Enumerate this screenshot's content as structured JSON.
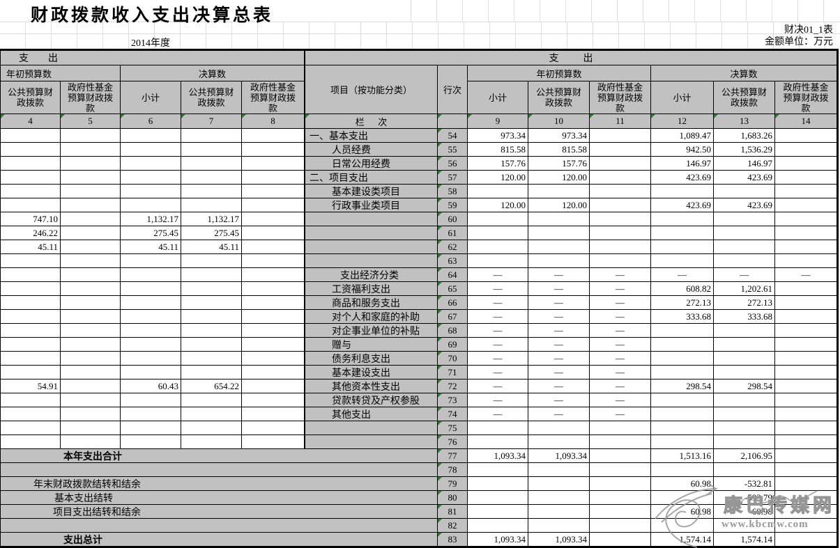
{
  "meta": {
    "title": "财政拨款收入支出决算总表",
    "form_code": "财决01_1表",
    "unit_note": "金额单位：万元",
    "year": "2014年度"
  },
  "header": {
    "expense_left": "支        出",
    "expense_right": "支          出",
    "initial_budget": "年初预算数",
    "final_account": "决算数",
    "subtotal": "小计",
    "public_budget": "公共预算财政拨款",
    "gov_fund": "政府性基金预算财政拨款",
    "item_label": "项目（按功能分类）",
    "row_no_label": "行次",
    "col_no_label": "栏      次",
    "left_col_nums": [
      "4",
      "5",
      "6",
      "7",
      "8"
    ],
    "right_col_nums": [
      "9",
      "10",
      "11",
      "12",
      "13",
      "14"
    ]
  },
  "rows": [
    {
      "no": "54",
      "label": "一、基本支出",
      "indent": 0,
      "bold": false,
      "span": false,
      "left": [
        "",
        "",
        "",
        "",
        ""
      ],
      "vals": [
        "973.34",
        "973.34",
        "",
        "1,089.47",
        "1,683.26",
        ""
      ]
    },
    {
      "no": "55",
      "label": "人员经费",
      "indent": 1,
      "bold": false,
      "span": false,
      "left": [
        "",
        "",
        "",
        "",
        ""
      ],
      "vals": [
        "815.58",
        "815.58",
        "",
        "942.50",
        "1,536.29",
        ""
      ]
    },
    {
      "no": "56",
      "label": "日常公用经费",
      "indent": 1,
      "bold": false,
      "span": false,
      "left": [
        "",
        "",
        "",
        "",
        ""
      ],
      "vals": [
        "157.76",
        "157.76",
        "",
        "146.97",
        "146.97",
        ""
      ]
    },
    {
      "no": "57",
      "label": "二、项目支出",
      "indent": 0,
      "bold": false,
      "span": false,
      "left": [
        "",
        "",
        "",
        "",
        ""
      ],
      "vals": [
        "120.00",
        "120.00",
        "",
        "423.69",
        "423.69",
        ""
      ]
    },
    {
      "no": "58",
      "label": "基本建设类项目",
      "indent": 1,
      "bold": false,
      "span": false,
      "left": [
        "",
        "",
        "",
        "",
        ""
      ],
      "vals": [
        "",
        "",
        "",
        "",
        "",
        ""
      ]
    },
    {
      "no": "59",
      "label": "行政事业类项目",
      "indent": 1,
      "bold": false,
      "span": false,
      "left": [
        "",
        "",
        "",
        "",
        ""
      ],
      "vals": [
        "120.00",
        "120.00",
        "",
        "423.69",
        "423.69",
        ""
      ]
    },
    {
      "no": "60",
      "label": "",
      "indent": 0,
      "bold": false,
      "span": false,
      "left": [
        "747.10",
        "",
        "1,132.17",
        "1,132.17",
        ""
      ],
      "vals": [
        "",
        "",
        "",
        "",
        "",
        ""
      ]
    },
    {
      "no": "61",
      "label": "",
      "indent": 0,
      "bold": false,
      "span": false,
      "left": [
        "246.22",
        "",
        "275.45",
        "275.45",
        ""
      ],
      "vals": [
        "",
        "",
        "",
        "",
        "",
        ""
      ]
    },
    {
      "no": "62",
      "label": "",
      "indent": 0,
      "bold": false,
      "span": false,
      "left": [
        "45.11",
        "",
        "45.11",
        "45.11",
        ""
      ],
      "vals": [
        "",
        "",
        "",
        "",
        "",
        ""
      ]
    },
    {
      "no": "63",
      "label": "",
      "indent": 0,
      "bold": false,
      "span": false,
      "left": [
        "",
        "",
        "",
        "",
        ""
      ],
      "vals": [
        "",
        "",
        "",
        "",
        "",
        ""
      ]
    },
    {
      "no": "64",
      "label": "支出经济分类",
      "indent": 2,
      "bold": false,
      "span": false,
      "left": [
        "",
        "",
        "",
        "",
        ""
      ],
      "vals": [
        "—",
        "—",
        "—",
        "—",
        "—",
        "—"
      ]
    },
    {
      "no": "65",
      "label": "工资福利支出",
      "indent": 1,
      "bold": false,
      "span": false,
      "left": [
        "",
        "",
        "",
        "",
        ""
      ],
      "vals": [
        "—",
        "—",
        "—",
        "608.82",
        "1,202.61",
        ""
      ]
    },
    {
      "no": "66",
      "label": "商品和服务支出",
      "indent": 1,
      "bold": false,
      "span": false,
      "left": [
        "",
        "",
        "",
        "",
        ""
      ],
      "vals": [
        "—",
        "—",
        "—",
        "272.13",
        "272.13",
        ""
      ]
    },
    {
      "no": "67",
      "label": "对个人和家庭的补助",
      "indent": 1,
      "bold": false,
      "span": false,
      "left": [
        "",
        "",
        "",
        "",
        ""
      ],
      "vals": [
        "—",
        "—",
        "—",
        "333.68",
        "333.68",
        ""
      ]
    },
    {
      "no": "68",
      "label": "对企事业单位的补贴",
      "indent": 1,
      "bold": false,
      "span": false,
      "left": [
        "",
        "",
        "",
        "",
        ""
      ],
      "vals": [
        "—",
        "—",
        "—",
        "",
        "",
        ""
      ]
    },
    {
      "no": "69",
      "label": "赠与",
      "indent": 1,
      "bold": false,
      "span": false,
      "left": [
        "",
        "",
        "",
        "",
        ""
      ],
      "vals": [
        "—",
        "—",
        "—",
        "",
        "",
        ""
      ]
    },
    {
      "no": "70",
      "label": "债务利息支出",
      "indent": 1,
      "bold": false,
      "span": false,
      "left": [
        "",
        "",
        "",
        "",
        ""
      ],
      "vals": [
        "—",
        "—",
        "—",
        "",
        "",
        ""
      ]
    },
    {
      "no": "71",
      "label": "基本建设支出",
      "indent": 1,
      "bold": false,
      "span": false,
      "left": [
        "",
        "",
        "",
        "",
        ""
      ],
      "vals": [
        "—",
        "—",
        "—",
        "",
        "",
        ""
      ]
    },
    {
      "no": "72",
      "label": "其他资本性支出",
      "indent": 1,
      "bold": false,
      "span": false,
      "left": [
        "54.91",
        "",
        "60.43",
        "654.22",
        ""
      ],
      "vals": [
        "—",
        "—",
        "—",
        "298.54",
        "298.54",
        ""
      ]
    },
    {
      "no": "73",
      "label": "贷款转贷及产权参股",
      "indent": 1,
      "bold": false,
      "span": false,
      "left": [
        "",
        "",
        "",
        "",
        ""
      ],
      "vals": [
        "—",
        "—",
        "—",
        "",
        "",
        ""
      ]
    },
    {
      "no": "74",
      "label": "其他支出",
      "indent": 1,
      "bold": false,
      "span": false,
      "left": [
        "",
        "",
        "",
        "",
        ""
      ],
      "vals": [
        "—",
        "—",
        "—",
        "",
        "",
        ""
      ]
    },
    {
      "no": "75",
      "label": "",
      "indent": 0,
      "bold": false,
      "span": false,
      "left": [
        "",
        "",
        "",
        "",
        ""
      ],
      "vals": [
        "",
        "",
        "",
        "",
        "",
        ""
      ]
    },
    {
      "no": "76",
      "label": "",
      "indent": 0,
      "bold": false,
      "span": false,
      "left": [
        "",
        "",
        "",
        "",
        ""
      ],
      "vals": [
        "",
        "",
        "",
        "",
        "",
        ""
      ]
    },
    {
      "no": "77",
      "label": "本年支出合计",
      "indent": 0,
      "pad": 90,
      "bold": true,
      "span": true,
      "left": [
        "",
        "",
        "",
        "",
        ""
      ],
      "vals": [
        "1,093.34",
        "1,093.34",
        "",
        "1,513.16",
        "2,106.95",
        ""
      ]
    },
    {
      "no": "78",
      "label": "",
      "indent": 0,
      "pad": 6,
      "bold": false,
      "span": true,
      "left": [
        "",
        "",
        "",
        "",
        ""
      ],
      "vals": [
        "",
        "",
        "",
        "",
        "",
        ""
      ]
    },
    {
      "no": "79",
      "label": "年末财政拨款结转和结余",
      "indent": 0,
      "pad": 47,
      "bold": false,
      "span": true,
      "left": [
        "",
        "",
        "",
        "",
        ""
      ],
      "vals": [
        "",
        "",
        "",
        "60.98",
        "-532.81",
        ""
      ]
    },
    {
      "no": "80",
      "label": "基本支出结转",
      "indent": 0,
      "pad": 77,
      "bold": false,
      "span": true,
      "left": [
        "",
        "",
        "",
        "",
        ""
      ],
      "vals": [
        "",
        "",
        "",
        "",
        "-593.79",
        ""
      ]
    },
    {
      "no": "81",
      "label": "项目支出结转和结余",
      "indent": 0,
      "pad": 75,
      "bold": false,
      "span": true,
      "left": [
        "",
        "",
        "",
        "",
        ""
      ],
      "vals": [
        "",
        "",
        "",
        "60.98",
        "60.98",
        ""
      ]
    },
    {
      "no": "82",
      "label": "",
      "indent": 0,
      "pad": 6,
      "bold": false,
      "span": true,
      "left": [
        "",
        "",
        "",
        "",
        ""
      ],
      "vals": [
        "",
        "",
        "",
        "",
        "",
        ""
      ]
    },
    {
      "no": "83",
      "label": "支出总计",
      "indent": 0,
      "pad": 90,
      "bold": true,
      "span": true,
      "left": [
        "",
        "",
        "",
        "",
        ""
      ],
      "vals": [
        "1,093.34",
        "1,093.34",
        "",
        "1,574.14",
        "1,574.14",
        ""
      ]
    }
  ],
  "watermark": {
    "site_name": "康巴传媒网",
    "site_url": "www.kbcmw.com"
  }
}
